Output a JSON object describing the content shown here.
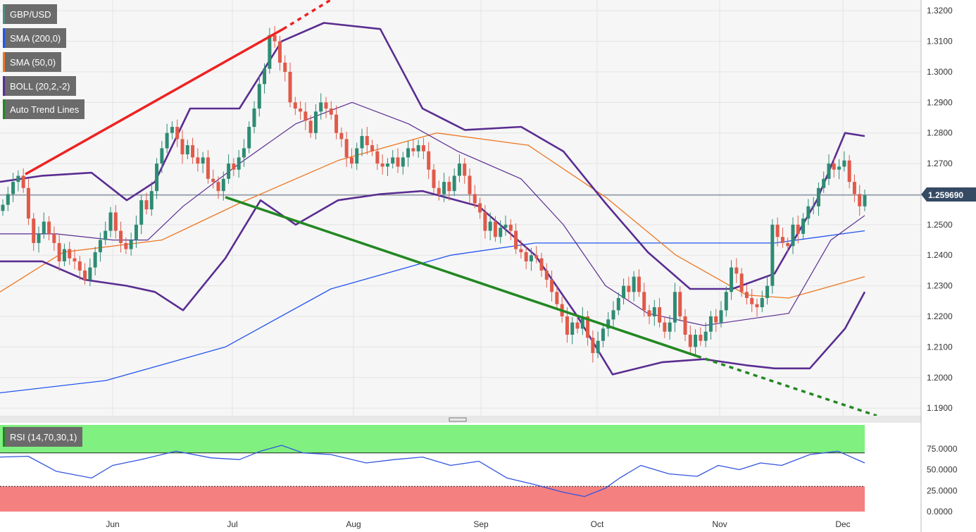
{
  "chart_data": [
    {
      "type": "candlestick",
      "title": "GBP/USD",
      "current_price": "1.259690",
      "y_ticks": [
        "1.3200",
        "1.3100",
        "1.3000",
        "1.2900",
        "1.2800",
        "1.2700",
        "1.2600",
        "1.2500",
        "1.2400",
        "1.2300",
        "1.2200",
        "1.2100",
        "1.2000",
        "1.1900"
      ],
      "ylim": [
        1.1875,
        1.3235
      ],
      "x_ticks": [
        "Jun",
        "Jul",
        "Aug",
        "Sep",
        "Oct",
        "Nov",
        "Dec"
      ],
      "grid": true,
      "legend": [
        {
          "label": "GBP/USD",
          "color": "#4a8f7f"
        },
        {
          "label": "SMA (200,0)",
          "color": "#2255ee"
        },
        {
          "label": "SMA (50,0)",
          "color": "#ee7722"
        },
        {
          "label": "BOLL (20,2,-2)",
          "color": "#5a2d91"
        },
        {
          "label": "Auto Trend Lines",
          "color": "#228822"
        }
      ],
      "colors": {
        "up": "#2e8b74",
        "down": "#e05a4a",
        "sma200": "#2255ee",
        "sma50": "#ee7722",
        "boll": "#5a2d91",
        "resistance": "#ee2222",
        "support": "#228822"
      },
      "closes": [
        1.2565,
        1.26,
        1.264,
        1.266,
        1.262,
        1.252,
        1.244,
        1.247,
        1.251,
        1.247,
        1.244,
        1.238,
        1.242,
        1.239,
        1.238,
        1.235,
        1.232,
        1.236,
        1.241,
        1.245,
        1.248,
        1.254,
        1.248,
        1.244,
        1.242,
        1.245,
        1.25,
        1.258,
        1.255,
        1.261,
        1.27,
        1.275,
        1.28,
        1.282,
        1.278,
        1.273,
        1.276,
        1.272,
        1.27,
        1.272,
        1.265,
        1.264,
        1.261,
        1.265,
        1.27,
        1.268,
        1.272,
        1.275,
        1.282,
        1.288,
        1.296,
        1.301,
        1.312,
        1.31,
        1.303,
        1.3,
        1.29,
        1.288,
        1.287,
        1.284,
        1.28,
        1.287,
        1.29,
        1.288,
        1.286,
        1.28,
        1.278,
        1.272,
        1.27,
        1.275,
        1.279,
        1.276,
        1.274,
        1.27,
        1.269,
        1.27,
        1.272,
        1.269,
        1.272,
        1.275,
        1.274,
        1.276,
        1.274,
        1.268,
        1.262,
        1.26,
        1.264,
        1.261,
        1.266,
        1.27,
        1.266,
        1.26,
        1.257,
        1.254,
        1.248,
        1.251,
        1.246,
        1.249,
        1.25,
        1.248,
        1.242,
        1.241,
        1.238,
        1.24,
        1.239,
        1.235,
        1.232,
        1.228,
        1.224,
        1.22,
        1.214,
        1.218,
        1.216,
        1.22,
        1.213,
        1.208,
        1.212,
        1.216,
        1.219,
        1.222,
        1.226,
        1.23,
        1.228,
        1.233,
        1.228,
        1.222,
        1.22,
        1.223,
        1.218,
        1.215,
        1.218,
        1.228,
        1.22,
        1.214,
        1.21,
        1.214,
        1.212,
        1.215,
        1.22,
        1.218,
        1.222,
        1.228,
        1.236,
        1.234,
        1.228,
        1.226,
        1.224,
        1.223,
        1.226,
        1.23,
        1.25,
        1.246,
        1.244,
        1.243,
        1.25,
        1.247,
        1.252,
        1.256,
        1.256,
        1.262,
        1.265,
        1.27,
        1.268,
        1.269,
        1.271,
        1.264,
        1.26,
        1.256,
        1.2597
      ],
      "sma200": [
        [
          0,
          1.195
        ],
        [
          150,
          1.199
        ],
        [
          320,
          1.21
        ],
        [
          470,
          1.229
        ],
        [
          640,
          1.24
        ],
        [
          760,
          1.244
        ],
        [
          960,
          1.244
        ],
        [
          1100,
          1.244
        ],
        [
          1228,
          1.248
        ]
      ],
      "sma50": [
        [
          0,
          1.228
        ],
        [
          90,
          1.241
        ],
        [
          230,
          1.245
        ],
        [
          340,
          1.257
        ],
        [
          480,
          1.271
        ],
        [
          620,
          1.28
        ],
        [
          750,
          1.276
        ],
        [
          860,
          1.259
        ],
        [
          960,
          1.24
        ],
        [
          1060,
          1.227
        ],
        [
          1120,
          1.226
        ],
        [
          1228,
          1.233
        ]
      ],
      "boll_mid": [
        [
          0,
          1.247
        ],
        [
          80,
          1.247
        ],
        [
          160,
          1.245
        ],
        [
          210,
          1.245
        ],
        [
          260,
          1.256
        ],
        [
          340,
          1.27
        ],
        [
          420,
          1.283
        ],
        [
          500,
          1.29
        ],
        [
          580,
          1.283
        ],
        [
          650,
          1.274
        ],
        [
          740,
          1.265
        ],
        [
          800,
          1.25
        ],
        [
          860,
          1.23
        ],
        [
          920,
          1.221
        ],
        [
          1000,
          1.217
        ],
        [
          1060,
          1.219
        ],
        [
          1120,
          1.221
        ],
        [
          1180,
          1.245
        ],
        [
          1228,
          1.253
        ]
      ],
      "boll_upper": [
        [
          0,
          1.264
        ],
        [
          60,
          1.266
        ],
        [
          130,
          1.267
        ],
        [
          180,
          1.258
        ],
        [
          220,
          1.264
        ],
        [
          270,
          1.288
        ],
        [
          340,
          1.288
        ],
        [
          400,
          1.31
        ],
        [
          460,
          1.316
        ],
        [
          540,
          1.314
        ],
        [
          600,
          1.288
        ],
        [
          660,
          1.281
        ],
        [
          740,
          1.282
        ],
        [
          800,
          1.274
        ],
        [
          860,
          1.257
        ],
        [
          920,
          1.241
        ],
        [
          980,
          1.229
        ],
        [
          1040,
          1.229
        ],
        [
          1100,
          1.234
        ],
        [
          1160,
          1.258
        ],
        [
          1200,
          1.28
        ],
        [
          1228,
          1.279
        ]
      ],
      "boll_lower": [
        [
          0,
          1.238
        ],
        [
          60,
          1.238
        ],
        [
          120,
          1.232
        ],
        [
          180,
          1.23
        ],
        [
          220,
          1.228
        ],
        [
          260,
          1.222
        ],
        [
          320,
          1.239
        ],
        [
          370,
          1.258
        ],
        [
          420,
          1.25
        ],
        [
          480,
          1.258
        ],
        [
          540,
          1.26
        ],
        [
          600,
          1.261
        ],
        [
          680,
          1.256
        ],
        [
          760,
          1.24
        ],
        [
          820,
          1.22
        ],
        [
          870,
          1.201
        ],
        [
          940,
          1.205
        ],
        [
          1000,
          1.206
        ],
        [
          1060,
          1.204
        ],
        [
          1100,
          1.203
        ],
        [
          1150,
          1.203
        ],
        [
          1200,
          1.216
        ],
        [
          1228,
          1.228
        ]
      ],
      "resistance_line": {
        "x": [
          36,
          402
        ],
        "y": [
          1.2665,
          1.314
        ],
        "extended_to": [
          480,
          1.325
        ]
      },
      "support_line": {
        "x": [
          320,
          990
        ],
        "y": [
          1.259,
          1.207
        ],
        "extended_to": [
          1245,
          1.1875
        ]
      }
    },
    {
      "type": "line",
      "title": "RSI (14,70,30,1)",
      "y_ticks": [
        "75.0000",
        "50.0000",
        "25.0000",
        "0.0000"
      ],
      "ylim": [
        0,
        100
      ],
      "overbought": 70,
      "oversold": 30,
      "colors": {
        "line": "#3355dd",
        "overbought_zone": "#80f080",
        "oversold_zone": "#f58080"
      },
      "values": [
        [
          0,
          65
        ],
        [
          40,
          66
        ],
        [
          80,
          48
        ],
        [
          130,
          40
        ],
        [
          160,
          55
        ],
        [
          200,
          62
        ],
        [
          250,
          72
        ],
        [
          300,
          64
        ],
        [
          340,
          62
        ],
        [
          370,
          72
        ],
        [
          400,
          79
        ],
        [
          430,
          70
        ],
        [
          470,
          68
        ],
        [
          520,
          58
        ],
        [
          560,
          62
        ],
        [
          600,
          65
        ],
        [
          640,
          55
        ],
        [
          680,
          60
        ],
        [
          720,
          40
        ],
        [
          760,
          32
        ],
        [
          800,
          23
        ],
        [
          830,
          18
        ],
        [
          860,
          28
        ],
        [
          880,
          40
        ],
        [
          910,
          55
        ],
        [
          950,
          45
        ],
        [
          990,
          42
        ],
        [
          1020,
          55
        ],
        [
          1050,
          50
        ],
        [
          1080,
          58
        ],
        [
          1110,
          55
        ],
        [
          1150,
          68
        ],
        [
          1190,
          72
        ],
        [
          1228,
          58
        ]
      ]
    }
  ]
}
